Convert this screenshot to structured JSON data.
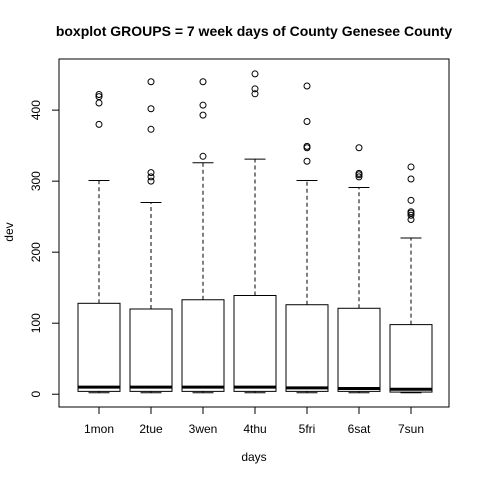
{
  "chart_data": {
    "type": "boxplot",
    "title": "boxplot GROUPS = 7 week days of County Genesee County",
    "xlabel": "days",
    "ylabel": "dev",
    "categories": [
      "1mon",
      "2tue",
      "3wen",
      "4thu",
      "5fri",
      "6sat",
      "7sun"
    ],
    "ylim": [
      -18,
      472
    ],
    "yticks": [
      0,
      100,
      200,
      300,
      400
    ],
    "grid": false,
    "legend": "none",
    "boxes": [
      {
        "category": "1mon",
        "whisker_low": 2,
        "q1": 4,
        "median": 10,
        "q3": 128,
        "whisker_high": 301,
        "outliers": [
          380,
          410,
          419,
          422
        ]
      },
      {
        "category": "2tue",
        "whisker_low": 2,
        "q1": 4,
        "median": 10,
        "q3": 120,
        "whisker_high": 270,
        "outliers": [
          300,
          306,
          312,
          373,
          402,
          440
        ]
      },
      {
        "category": "3wen",
        "whisker_low": 2,
        "q1": 4,
        "median": 10,
        "q3": 133,
        "whisker_high": 326,
        "outliers": [
          335,
          393,
          407,
          440
        ]
      },
      {
        "category": "4thu",
        "whisker_low": 2,
        "q1": 4,
        "median": 10,
        "q3": 139,
        "whisker_high": 331,
        "outliers": [
          423,
          430,
          451
        ]
      },
      {
        "category": "5fri",
        "whisker_low": 2,
        "q1": 4,
        "median": 9,
        "q3": 126,
        "whisker_high": 301,
        "outliers": [
          328,
          347,
          349,
          384,
          434
        ]
      },
      {
        "category": "6sat",
        "whisker_low": 2,
        "q1": 4,
        "median": 8,
        "q3": 121,
        "whisker_high": 291,
        "outliers": [
          306,
          309,
          311,
          347
        ]
      },
      {
        "category": "7sun",
        "whisker_low": 2,
        "q1": 3,
        "median": 7,
        "q3": 98,
        "whisker_high": 220,
        "outliers": [
          246,
          252,
          255,
          257,
          273,
          303,
          320
        ]
      }
    ]
  }
}
